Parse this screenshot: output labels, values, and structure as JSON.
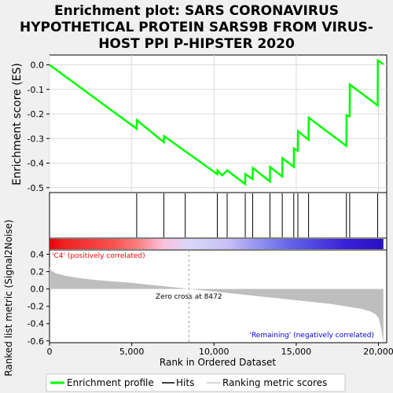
{
  "title_lines": [
    "Enrichment plot: SARS CORONAVIRUS",
    "HYPOTHETICAL PROTEIN SARS9B FROM VIRUS-",
    "HOST PPI P-HIPSTER 2020"
  ],
  "colors": {
    "enrichment_line": "#00ff00",
    "hits": "#000000",
    "ranking_fill": "#bebebe",
    "positive_label": "#ff0000",
    "negative_label": "#0000cd",
    "zero_cross_line": "#a0a0a0"
  },
  "chart_data": {
    "type": "line",
    "enrichment": {
      "ylabel": "Enrichment score (ES)",
      "ylim": [
        -0.52,
        0.04
      ],
      "yticks": [
        0.0,
        -0.1,
        -0.2,
        -0.3,
        -0.4,
        -0.5
      ],
      "ytick_labels": [
        "0.0",
        "-0.1",
        "-0.2",
        "-0.3",
        "-0.4",
        "-0.5"
      ],
      "x": [
        0,
        5300,
        5310,
        6950,
        6960,
        10200,
        10210,
        10500,
        10800,
        10810,
        11900,
        11910,
        12350,
        12360,
        13400,
        13410,
        14150,
        14160,
        14850,
        14860,
        15100,
        15110,
        15750,
        15760,
        18050,
        18060,
        18250,
        18260,
        19950,
        19960,
        20300
      ],
      "y": [
        0.0,
        -0.26,
        -0.225,
        -0.315,
        -0.29,
        -0.445,
        -0.43,
        -0.45,
        -0.43,
        -0.43,
        -0.485,
        -0.445,
        -0.465,
        -0.42,
        -0.475,
        -0.415,
        -0.455,
        -0.38,
        -0.415,
        -0.34,
        -0.35,
        -0.27,
        -0.305,
        -0.215,
        -0.33,
        -0.205,
        -0.21,
        -0.08,
        -0.165,
        0.018,
        0.003
      ]
    },
    "hits_x": [
      5300,
      6950,
      8250,
      10200,
      10800,
      11900,
      12350,
      13400,
      14150,
      14850,
      15100,
      15750,
      18050,
      18250,
      19950
    ],
    "ranking_metric": {
      "ylabel": "Ranked list metric (Signal2Noise)",
      "ylim": [
        -0.62,
        0.45
      ],
      "yticks": [
        0.4,
        0.2,
        0.0,
        -0.2,
        -0.4,
        -0.6
      ],
      "ytick_labels": [
        "0.4",
        "0.2",
        "0.0",
        "-0.2",
        "-0.4",
        "-0.6"
      ],
      "x": [
        0,
        100,
        400,
        1000,
        2000,
        3000,
        4000,
        5000,
        6000,
        7000,
        8000,
        8472,
        9000,
        10000,
        11000,
        12000,
        13000,
        14000,
        15000,
        16000,
        17000,
        18000,
        19000,
        19500,
        19800,
        20000,
        20100,
        20200,
        20300
      ],
      "y": [
        0.25,
        0.21,
        0.18,
        0.15,
        0.12,
        0.1,
        0.085,
        0.07,
        0.05,
        0.03,
        0.01,
        0.0,
        -0.01,
        -0.03,
        -0.05,
        -0.07,
        -0.09,
        -0.11,
        -0.13,
        -0.15,
        -0.17,
        -0.2,
        -0.23,
        -0.26,
        -0.29,
        -0.33,
        -0.4,
        -0.5,
        -0.62
      ]
    },
    "xlim": [
      0,
      20500
    ],
    "xticks": [
      0,
      5000,
      10000,
      15000,
      20000
    ],
    "xtick_labels": [
      "0",
      "5,000",
      "10,000",
      "15,000",
      "20,000"
    ],
    "xlabel": "Rank in Ordered Dataset",
    "zero_cross": 8472,
    "zero_cross_label": "Zero cross at 8472",
    "positive_label": "'C4' (positively correlated)",
    "negative_label": "'Remaining' (negatively correlated)",
    "heatmap_stops": [
      {
        "x": 0,
        "color": "#e8000e"
      },
      {
        "x": 800,
        "color": "#f02020"
      },
      {
        "x": 3800,
        "color": "#f85050"
      },
      {
        "x": 5400,
        "color": "#fa8080"
      },
      {
        "x": 6900,
        "color": "#fcc0dc"
      },
      {
        "x": 8500,
        "color": "#d8d8f8"
      },
      {
        "x": 10800,
        "color": "#c8c0f4"
      },
      {
        "x": 12800,
        "color": "#9090f0"
      },
      {
        "x": 14800,
        "color": "#6060e8"
      },
      {
        "x": 18000,
        "color": "#3a20d8"
      },
      {
        "x": 20300,
        "color": "#2a10c0"
      }
    ]
  },
  "legend": [
    {
      "label": "Enrichment profile",
      "kind": "line-green"
    },
    {
      "label": "Hits",
      "kind": "line-black"
    },
    {
      "label": "Ranking metric scores",
      "kind": "line-gray"
    }
  ]
}
